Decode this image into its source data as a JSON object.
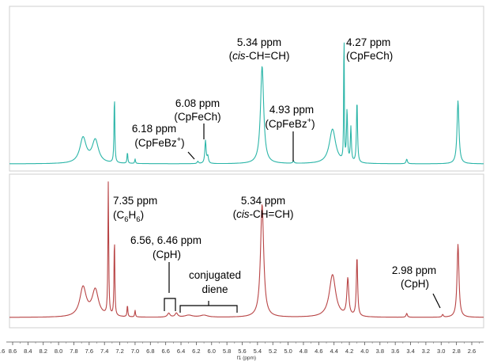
{
  "chart_data": [
    {
      "type": "line",
      "panel": "top",
      "color": "#2bb5a8",
      "x_label": "f1 (ppm)",
      "xlim": [
        9.6,
        2.5
      ],
      "x_reversed": true,
      "peaks": [
        {
          "ppm": 7.68,
          "height": 0.22,
          "width": 0.05
        },
        {
          "ppm": 7.52,
          "height": 0.2,
          "width": 0.05
        },
        {
          "ppm": 7.27,
          "height": 0.6,
          "width": 0.006
        },
        {
          "ppm": 7.1,
          "height": 0.1,
          "width": 0.006
        },
        {
          "ppm": 7.0,
          "height": 0.04,
          "width": 0.006
        },
        {
          "ppm": 6.18,
          "height": 0.02,
          "width": 0.01
        },
        {
          "ppm": 6.08,
          "height": 0.2,
          "width": 0.01
        },
        {
          "ppm": 6.05,
          "height": 0.06,
          "width": 0.01
        },
        {
          "ppm": 5.34,
          "height": 0.85,
          "width": 0.025
        },
        {
          "ppm": 4.93,
          "height": 0.02,
          "width": 0.01
        },
        {
          "ppm": 4.42,
          "height": 0.3,
          "width": 0.05
        },
        {
          "ppm": 4.27,
          "height": 1.3,
          "width": 0.004
        },
        {
          "ppm": 4.23,
          "height": 0.45,
          "width": 0.008
        },
        {
          "ppm": 4.18,
          "height": 0.3,
          "width": 0.008
        },
        {
          "ppm": 4.1,
          "height": 0.55,
          "width": 0.008
        },
        {
          "ppm": 3.45,
          "height": 0.04,
          "width": 0.01
        },
        {
          "ppm": 2.78,
          "height": 0.55,
          "width": 0.015
        }
      ],
      "annotations": [
        {
          "text": "5.34 ppm",
          "ppm": 5.34
        },
        {
          "text": "(cis-CH=CH)",
          "ppm": 5.34
        },
        {
          "text": "4.27 ppm",
          "ppm": 4.27
        },
        {
          "text": "(CpFeCh)",
          "ppm": 4.27
        },
        {
          "text": "6.08 ppm",
          "ppm": 6.08
        },
        {
          "text": "(CpFeCh)",
          "ppm": 6.08
        },
        {
          "text": "4.93 ppm",
          "ppm": 4.93
        },
        {
          "text": "(CpFeBz+)",
          "ppm": 4.93
        },
        {
          "text": "6.18 ppm",
          "ppm": 6.18
        },
        {
          "text": "(CpFeBz+)",
          "ppm": 6.18
        }
      ]
    },
    {
      "type": "line",
      "panel": "bottom",
      "color": "#b84445",
      "x_label": "f1 (ppm)",
      "xlim": [
        9.6,
        2.5
      ],
      "x_reversed": true,
      "peaks": [
        {
          "ppm": 7.68,
          "height": 0.22,
          "width": 0.05
        },
        {
          "ppm": 7.52,
          "height": 0.2,
          "width": 0.05
        },
        {
          "ppm": 7.35,
          "height": 1.0,
          "width": 0.006
        },
        {
          "ppm": 7.27,
          "height": 0.6,
          "width": 0.006
        },
        {
          "ppm": 7.1,
          "height": 0.09,
          "width": 0.006
        },
        {
          "ppm": 7.0,
          "height": 0.05,
          "width": 0.006
        },
        {
          "ppm": 6.56,
          "height": 0.03,
          "width": 0.02
        },
        {
          "ppm": 6.46,
          "height": 0.03,
          "width": 0.02
        },
        {
          "ppm": 6.3,
          "height": 0.015,
          "width": 0.06
        },
        {
          "ppm": 6.1,
          "height": 0.015,
          "width": 0.06
        },
        {
          "ppm": 5.34,
          "height": 0.85,
          "width": 0.025
        },
        {
          "ppm": 4.42,
          "height": 0.32,
          "width": 0.05
        },
        {
          "ppm": 4.22,
          "height": 0.28,
          "width": 0.015
        },
        {
          "ppm": 4.1,
          "height": 0.45,
          "width": 0.01
        },
        {
          "ppm": 3.45,
          "height": 0.03,
          "width": 0.01
        },
        {
          "ppm": 2.98,
          "height": 0.02,
          "width": 0.01
        },
        {
          "ppm": 2.78,
          "height": 0.55,
          "width": 0.015
        }
      ],
      "annotations": [
        {
          "text": "7.35 ppm",
          "ppm": 7.35
        },
        {
          "text": "(C6H6)",
          "ppm": 7.35
        },
        {
          "text": "5.34 ppm",
          "ppm": 5.34
        },
        {
          "text": "(cis-CH=CH)",
          "ppm": 5.34
        },
        {
          "text": "6.56, 6.46 ppm",
          "ppm": 6.51
        },
        {
          "text": "(CpH)",
          "ppm": 6.51
        },
        {
          "text": "conjugated",
          "ppm": 6.15
        },
        {
          "text": "diene",
          "ppm": 6.15
        },
        {
          "text": "2.98 ppm",
          "ppm": 2.98
        },
        {
          "text": "(CpH)",
          "ppm": 2.98
        }
      ]
    }
  ],
  "axis": {
    "ticks": [
      "8.6",
      "8.4",
      "8.2",
      "8.0",
      "7.8",
      "7.6",
      "7.4",
      "7.2",
      "7.0",
      "6.8",
      "6.6",
      "6.4",
      "6.2",
      "6.0",
      "5.8",
      "5.6",
      "5.4",
      "5.2",
      "5.0",
      "4.8",
      "4.6",
      "4.4",
      "4.2",
      "4.0",
      "3.8",
      "3.6",
      "3.4",
      "3.2",
      "3.0",
      "2.8",
      "2.6"
    ],
    "x_label": "f1 (ppm)"
  }
}
